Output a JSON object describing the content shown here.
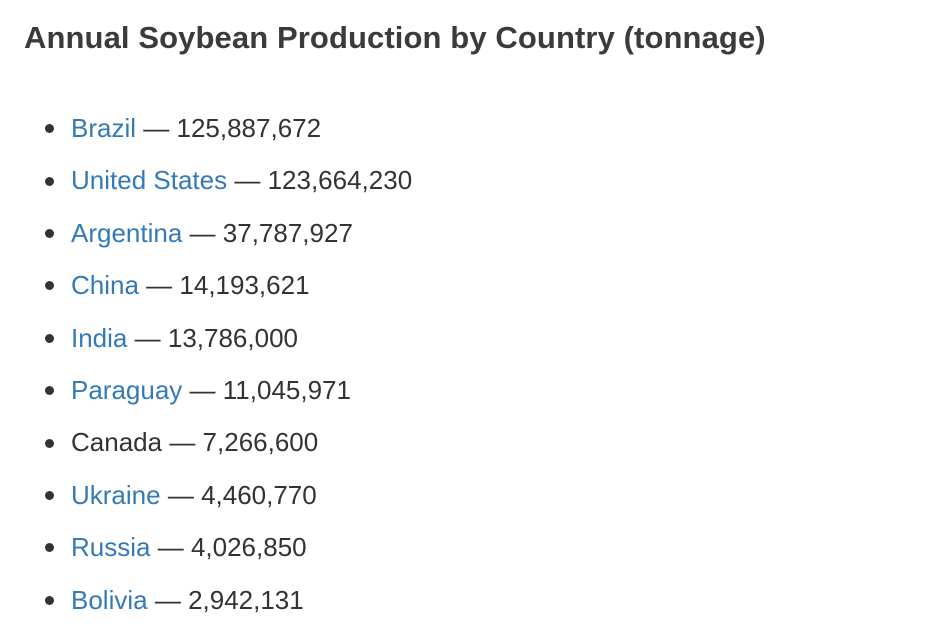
{
  "title": "Annual Soybean Production by Country (tonnage)",
  "separator": "—",
  "colors": {
    "link": "#337ab7",
    "text": "#333333",
    "heading": "#3b3b3b"
  },
  "items": [
    {
      "country": "Brazil",
      "value": "125,887,672",
      "linked": true
    },
    {
      "country": "United States",
      "value": "123,664,230",
      "linked": true
    },
    {
      "country": "Argentina",
      "value": "37,787,927",
      "linked": true
    },
    {
      "country": "China",
      "value": "14,193,621",
      "linked": true
    },
    {
      "country": "India",
      "value": "13,786,000",
      "linked": true
    },
    {
      "country": "Paraguay",
      "value": "11,045,971",
      "linked": true
    },
    {
      "country": "Canada",
      "value": "7,266,600",
      "linked": false
    },
    {
      "country": "Ukraine",
      "value": "4,460,770",
      "linked": true
    },
    {
      "country": "Russia",
      "value": "4,026,850",
      "linked": true
    },
    {
      "country": "Bolivia",
      "value": "2,942,131",
      "linked": true
    }
  ]
}
